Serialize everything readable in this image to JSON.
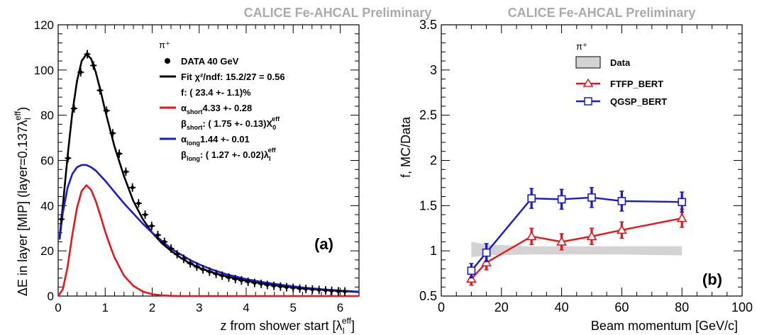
{
  "chart_data": [
    {
      "panel": "(a)",
      "type": "scatter",
      "title": "CALICE Fe-AHCAL Preliminary",
      "xlabel": "z from shower start [λI eff]",
      "ylabel": "ΔE in layer [MIP] (layer=0.137λI eff)",
      "xlim": [
        0,
        6.4
      ],
      "ylim": [
        0,
        120
      ],
      "x_ticks": [
        "0",
        "1",
        "2",
        "3",
        "4",
        "5",
        "6"
      ],
      "y_ticks": [
        "0",
        "20",
        "40",
        "60",
        "80",
        "100",
        "120"
      ],
      "legend": {
        "particle": "π⁺",
        "data": "DATA  40 GeV",
        "fit": "Fit χ²/ndf:  15.2/27 =  0.56",
        "f": "f: ( 23.4 +-   1.1)%",
        "alpha_short": "4.33 +- 0.28",
        "beta_short": ": ( 1.75 +-  0.13)X",
        "alpha_long": "1.44 +- 0.01",
        "beta_long": ": ( 1.27 +- 0.02)λ"
      },
      "series": [
        {
          "kind": "data",
          "x": [
            0.07,
            0.21,
            0.34,
            0.48,
            0.62,
            0.75,
            0.89,
            1.03,
            1.16,
            1.3,
            1.44,
            1.58,
            1.71,
            1.85,
            1.99,
            2.12,
            2.26,
            2.4,
            2.53,
            2.67,
            2.81,
            2.95,
            3.08,
            3.22,
            3.36,
            3.49,
            3.63,
            3.77,
            3.9,
            4.04,
            4.18,
            4.32,
            4.45,
            4.59,
            4.73,
            4.86,
            5.0,
            5.14,
            5.27,
            5.41,
            5.55,
            5.69,
            5.82,
            5.96,
            6.1
          ],
          "y": [
            34,
            61,
            83,
            99,
            107,
            102,
            91,
            82,
            72,
            63,
            55,
            48,
            41,
            36,
            31,
            27,
            24,
            21,
            18.5,
            16.5,
            14.5,
            13,
            11.8,
            10.8,
            9.8,
            9,
            8.2,
            7.5,
            6.9,
            6.3,
            5.8,
            5.4,
            4.9,
            4.5,
            4.2,
            3.9,
            3.6,
            3.3,
            3.1,
            2.9,
            2.7,
            2.5,
            2.3,
            2.1,
            2.0
          ]
        },
        {
          "kind": "fit",
          "name": "Fit",
          "color": "#000000",
          "x": [
            0.03,
            0.1,
            0.2,
            0.3,
            0.4,
            0.5,
            0.6,
            0.7,
            0.8,
            0.9,
            1.0,
            1.2,
            1.4,
            1.6,
            1.8,
            2.0,
            2.2,
            2.4,
            2.6,
            2.8,
            3.0,
            3.3,
            3.6,
            4.0,
            4.4,
            4.8,
            5.2,
            5.6,
            6.0,
            6.4
          ],
          "y": [
            26,
            40,
            62,
            81,
            95,
            104,
            107,
            105,
            99,
            91,
            82,
            66,
            53,
            42,
            34,
            28,
            23.5,
            20,
            17,
            14.5,
            12.5,
            10.3,
            8.6,
            6.8,
            5.5,
            4.5,
            3.6,
            2.9,
            2.3,
            1.8
          ]
        },
        {
          "kind": "component",
          "name": "α_short",
          "color": "#e8161b",
          "x": [
            0,
            0.1,
            0.2,
            0.3,
            0.4,
            0.5,
            0.6,
            0.7,
            0.8,
            0.9,
            1.0,
            1.1,
            1.2,
            1.4,
            1.6,
            1.8,
            2.0,
            2.2,
            2.4,
            2.6,
            3.0,
            4.0,
            5.0,
            6.4
          ],
          "y": [
            0,
            3,
            13,
            27,
            39,
            46.5,
            49,
            47,
            42,
            35.5,
            28.5,
            22.5,
            17,
            9,
            4.5,
            2,
            0.8,
            0.3,
            0.1,
            0,
            0,
            0,
            0,
            0
          ]
        },
        {
          "kind": "component",
          "name": "α_long",
          "color": "#1a1ad6",
          "x": [
            0.03,
            0.1,
            0.2,
            0.3,
            0.4,
            0.5,
            0.6,
            0.7,
            0.8,
            1.0,
            1.2,
            1.4,
            1.6,
            1.8,
            2.0,
            2.2,
            2.4,
            2.6,
            2.8,
            3.0,
            3.3,
            3.6,
            4.0,
            4.4,
            4.8,
            5.2,
            5.6,
            6.0,
            6.4
          ],
          "y": [
            25,
            37,
            48,
            54,
            57,
            58,
            58,
            57,
            55.5,
            51,
            46,
            41,
            36.5,
            32,
            28,
            24.5,
            21,
            18.5,
            16,
            14,
            11.5,
            9.5,
            7.5,
            6,
            4.8,
            3.8,
            3,
            2.4,
            1.9
          ]
        }
      ],
      "annotations": [
        "(a)"
      ]
    },
    {
      "panel": "(b)",
      "type": "line",
      "title": "CALICE Fe-AHCAL Preliminary",
      "xlabel": "Beam momentum [GeV/c]",
      "ylabel": "f, MC/Data",
      "xlim": [
        0,
        100
      ],
      "ylim": [
        0.5,
        3.5
      ],
      "x_ticks": [
        "0",
        "20",
        "40",
        "60",
        "80",
        "100"
      ],
      "y_ticks": [
        "0.5",
        "1",
        "1.5",
        "2",
        "2.5",
        "3",
        "3.5"
      ],
      "legend": {
        "particle": "π⁺",
        "data": "Data",
        "series_names": [
          "FTFP_BERT",
          "QGSP_BERT"
        ]
      },
      "data_band": {
        "x": [
          10,
          15,
          30,
          40,
          50,
          60,
          80
        ],
        "lo": [
          0.93,
          0.95,
          0.96,
          0.96,
          0.96,
          0.96,
          0.95
        ],
        "hi": [
          1.1,
          1.07,
          1.05,
          1.05,
          1.05,
          1.05,
          1.05
        ]
      },
      "series": [
        {
          "name": "FTFP_BERT",
          "color": "#e8161b",
          "marker": "triangle",
          "x": [
            10,
            15,
            30,
            40,
            50,
            60,
            80
          ],
          "y": [
            0.69,
            0.87,
            1.16,
            1.1,
            1.16,
            1.23,
            1.36
          ],
          "err": [
            0.07,
            0.08,
            0.09,
            0.09,
            0.09,
            0.09,
            0.1
          ]
        },
        {
          "name": "QGSP_BERT",
          "color": "#1a1ad6",
          "marker": "square",
          "x": [
            10,
            15,
            30,
            40,
            50,
            60,
            80
          ],
          "y": [
            0.78,
            0.98,
            1.58,
            1.57,
            1.59,
            1.55,
            1.54
          ],
          "err": [
            0.08,
            0.1,
            0.11,
            0.11,
            0.11,
            0.11,
            0.11
          ]
        }
      ],
      "annotations": [
        "(b)"
      ]
    }
  ]
}
